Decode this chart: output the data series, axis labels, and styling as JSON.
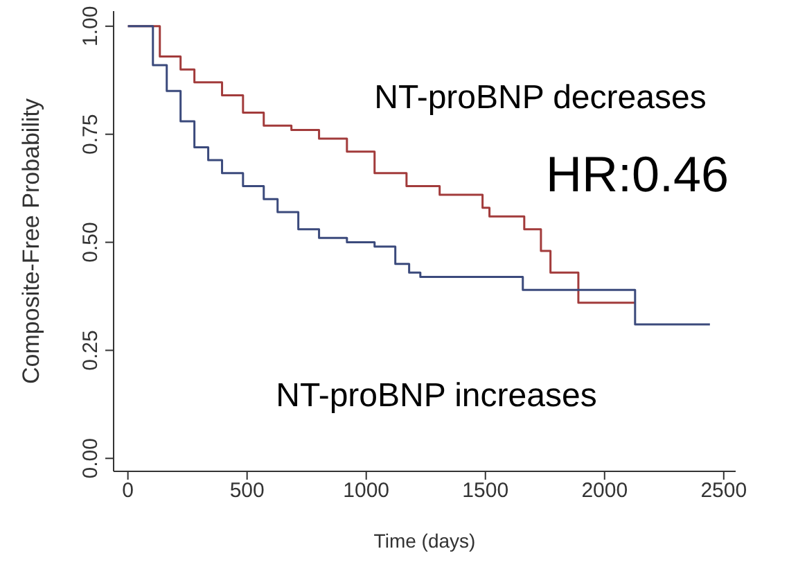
{
  "chart_data": {
    "type": "step",
    "xlabel": "Time (days)",
    "ylabel": "Composite-Free Probability",
    "annotations": [
      "HR:0.46"
    ],
    "xlim": [
      -60,
      2550
    ],
    "xticks": [
      0,
      500,
      1000,
      1500,
      2000,
      2500
    ],
    "ylim": [
      -0.03,
      1.035
    ],
    "yticks": [
      {
        "value": 0,
        "label": "0.00"
      },
      {
        "value": 0.25,
        "label": "0.25"
      },
      {
        "value": 0.5,
        "label": "0.50"
      },
      {
        "value": 0.75,
        "label": "0.75"
      },
      {
        "value": 1,
        "label": "1.00"
      }
    ],
    "marker": "none",
    "line_style": "solid",
    "series": [
      {
        "name": "NT-proBNP decreases",
        "color": "#a23b3b",
        "x": [
          0,
          134,
          221,
          279,
          395,
          483,
          570,
          686,
          802,
          919,
          1035,
          1169,
          1308,
          1488,
          1517,
          1663,
          1733,
          1773,
          1890,
          2128
        ],
        "values": [
          1,
          0.93,
          0.9,
          0.87,
          0.84,
          0.8,
          0.77,
          0.76,
          0.74,
          0.71,
          0.66,
          0.63,
          0.61,
          0.58,
          0.56,
          0.53,
          0.48,
          0.43,
          0.36,
          0.36
        ]
      },
      {
        "name": "NT-proBNP increases",
        "color": "#3b4a7c",
        "x": [
          0,
          105,
          163,
          221,
          279,
          337,
          395,
          483,
          570,
          628,
          715,
          802,
          919,
          1035,
          1122,
          1180,
          1227,
          1657,
          2128,
          2442
        ],
        "values": [
          1,
          0.91,
          0.85,
          0.78,
          0.72,
          0.69,
          0.66,
          0.63,
          0.6,
          0.57,
          0.53,
          0.51,
          0.5,
          0.49,
          0.45,
          0.43,
          0.42,
          0.39,
          0.31,
          0.31
        ]
      }
    ]
  }
}
